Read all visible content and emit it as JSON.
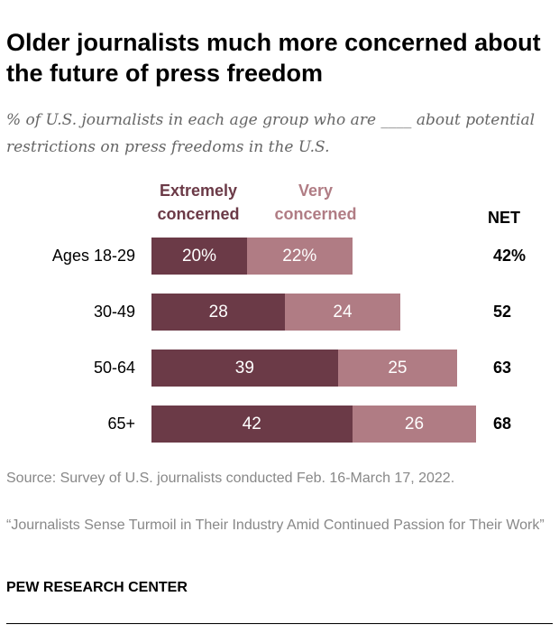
{
  "chart_data": {
    "type": "bar",
    "stacked": true,
    "orientation": "horizontal",
    "title": "Older journalists much more concerned about the future of press freedom",
    "subtitle": "% of U.S. journalists in each age group who are ____ about potential restrictions on press freedoms in the U.S.",
    "categories": [
      "Ages 18-29",
      "30-49",
      "50-64",
      "65+"
    ],
    "series": [
      {
        "name": "Extremely concerned",
        "color": "#6b3a47",
        "values": [
          20,
          28,
          39,
          42
        ],
        "labels": [
          "20%",
          "28",
          "39",
          "42"
        ]
      },
      {
        "name": "Very concerned",
        "color": "#b07c84",
        "values": [
          22,
          24,
          25,
          26
        ],
        "labels": [
          "22%",
          "24",
          "25",
          "26"
        ]
      }
    ],
    "net_header": "NET",
    "net": [
      "42%",
      "52",
      "63",
      "68"
    ]
  },
  "footer": {
    "source": "Source: Survey of U.S. journalists conducted Feb. 16-March 17, 2022.",
    "report": "“Journalists Sense Turmoil in Their Industry Amid Continued Passion for Their Work”",
    "brand": "PEW RESEARCH CENTER"
  }
}
